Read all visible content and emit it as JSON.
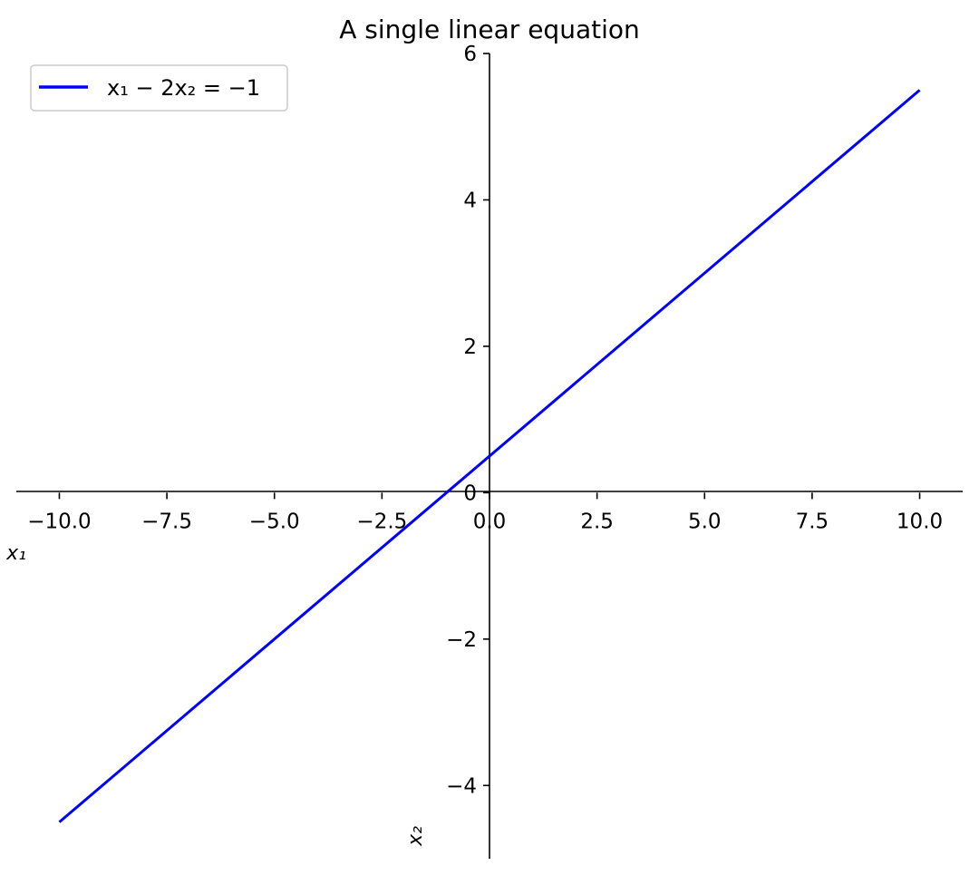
{
  "chart_data": {
    "type": "line",
    "title": "A single linear equation",
    "xlabel": "x₁",
    "ylabel": "x₂",
    "xlim": [
      -11,
      11
    ],
    "ylim": [
      -5,
      6
    ],
    "xticks": [
      -10.0,
      -7.5,
      -5.0,
      -2.5,
      0.0,
      2.5,
      5.0,
      7.5,
      10.0
    ],
    "xtick_labels": [
      "−10.0",
      "−7.5",
      "−5.0",
      "−2.5",
      "0.0",
      "2.5",
      "5.0",
      "7.5",
      "10.0"
    ],
    "yticks": [
      -4,
      -2,
      0,
      2,
      4,
      6
    ],
    "ytick_labels": [
      "−4",
      "−2",
      "0",
      "2",
      "4",
      "6"
    ],
    "grid": false,
    "spines": "centered at origin",
    "legend_position": "top-left",
    "series": [
      {
        "name": "x₁ − 2x₂ = −1",
        "color": "#0000ff",
        "x": [
          -10,
          10
        ],
        "y": [
          -4.5,
          5.5
        ]
      }
    ]
  }
}
